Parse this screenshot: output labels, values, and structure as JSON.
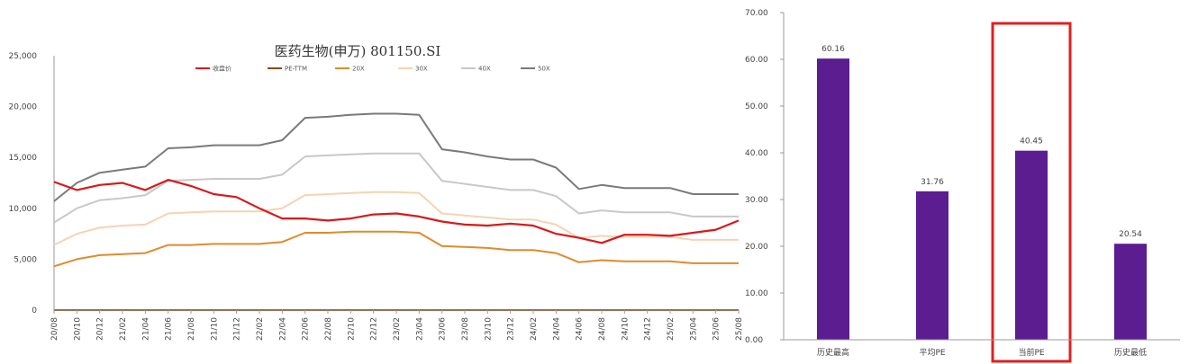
{
  "chart_data": [
    {
      "type": "line",
      "title": "医药生物(申万) 801150.SI",
      "ylim": [
        0,
        25000
      ],
      "y_ticks": [
        0,
        5000,
        10000,
        15000,
        20000,
        25000
      ],
      "y_tick_labels": [
        "0",
        "5,000",
        "10,000",
        "15,000",
        "20,000",
        "25,000"
      ],
      "categories": [
        "20/08",
        "20/10",
        "20/12",
        "21/02",
        "21/04",
        "21/06",
        "21/08",
        "21/10",
        "21/12",
        "22/02",
        "22/04",
        "22/06",
        "22/08",
        "22/10",
        "22/12",
        "23/02",
        "23/04",
        "23/06",
        "23/08",
        "23/10",
        "23/12",
        "24/02",
        "24/04",
        "24/06",
        "24/08",
        "24/10",
        "24/12",
        "25/02",
        "25/04",
        "25/06",
        "25/08"
      ],
      "legend_position": "top",
      "series": [
        {
          "name": "收盘价",
          "color": "#d7191c",
          "values": [
            12600,
            11800,
            12300,
            12500,
            11800,
            12800,
            12200,
            11400,
            11100,
            10000,
            9000,
            9000,
            8800,
            9000,
            9400,
            9500,
            9200,
            8700,
            8400,
            8300,
            8500,
            8300,
            7500,
            7100,
            6600,
            7400,
            7400,
            7300,
            7600,
            7900,
            8800
          ]
        },
        {
          "name": "PE-TTM",
          "color": "#8c4a1c",
          "values": [
            0,
            0,
            0,
            0,
            0,
            0,
            0,
            0,
            0,
            0,
            0,
            0,
            0,
            0,
            0,
            0,
            0,
            0,
            0,
            0,
            0,
            0,
            0,
            0,
            0,
            0,
            0,
            0,
            0,
            0,
            0
          ]
        },
        {
          "name": "20X",
          "color": "#e08a2c",
          "values": [
            4300,
            5000,
            5400,
            5500,
            5600,
            6400,
            6400,
            6500,
            6500,
            6500,
            6700,
            7600,
            7600,
            7700,
            7700,
            7700,
            7600,
            6300,
            6200,
            6100,
            5900,
            5900,
            5600,
            4700,
            4900,
            4800,
            4800,
            4800,
            4600,
            4600,
            4600
          ]
        },
        {
          "name": "30X",
          "color": "#f6d3b2",
          "values": [
            6400,
            7500,
            8100,
            8300,
            8400,
            9500,
            9600,
            9700,
            9700,
            9700,
            10000,
            11300,
            11400,
            11500,
            11600,
            11600,
            11500,
            9500,
            9300,
            9100,
            8900,
            8900,
            8400,
            7100,
            7300,
            7200,
            7200,
            7200,
            6900,
            6900,
            6900
          ]
        },
        {
          "name": "40X",
          "color": "#c8c8c8",
          "values": [
            8600,
            10000,
            10800,
            11000,
            11300,
            12700,
            12800,
            12900,
            12900,
            12900,
            13300,
            15100,
            15200,
            15300,
            15400,
            15400,
            15400,
            12700,
            12400,
            12100,
            11800,
            11800,
            11200,
            9500,
            9800,
            9600,
            9600,
            9600,
            9200,
            9200,
            9200
          ]
        },
        {
          "name": "50X",
          "color": "#7a7a7a",
          "values": [
            10700,
            12500,
            13500,
            13800,
            14100,
            15900,
            16000,
            16200,
            16200,
            16200,
            16700,
            18900,
            19000,
            19200,
            19300,
            19300,
            19200,
            15800,
            15500,
            15100,
            14800,
            14800,
            14000,
            11900,
            12300,
            12000,
            12000,
            12000,
            11400,
            11400,
            11400
          ]
        }
      ]
    },
    {
      "type": "bar",
      "categories": [
        "历史最高",
        "平均PE",
        "当前PE",
        "历史最低"
      ],
      "values": [
        60.16,
        31.76,
        40.45,
        20.54
      ],
      "value_labels": [
        "60.16",
        "31.76",
        "40.45",
        "20.54"
      ],
      "bar_color": "#5b1d8f",
      "highlight_index": 2,
      "highlight_color": "#e02020",
      "ylim": [
        0,
        70
      ],
      "y_ticks": [
        0,
        10,
        20,
        30,
        40,
        50,
        60,
        70
      ],
      "y_tick_labels": [
        "0.00",
        "10.00",
        "20.00",
        "30.00",
        "40.00",
        "50.00",
        "60.00",
        "70.00"
      ]
    }
  ]
}
